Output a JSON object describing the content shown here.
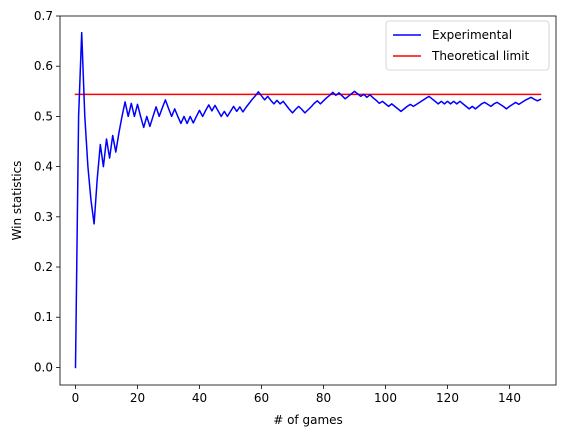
{
  "chart_data": {
    "type": "line",
    "xlabel": "# of games",
    "ylabel": "Win statistics",
    "xlim": [
      -5,
      155
    ],
    "ylim": [
      -0.035,
      0.7
    ],
    "xticks": [
      0,
      20,
      40,
      60,
      80,
      100,
      120,
      140
    ],
    "yticks": [
      0.0,
      0.1,
      0.2,
      0.3,
      0.4,
      0.5,
      0.6,
      0.7
    ],
    "xtick_labels": [
      "0",
      "20",
      "40",
      "60",
      "80",
      "100",
      "120",
      "140"
    ],
    "ytick_labels": [
      "0.0",
      "0.1",
      "0.2",
      "0.3",
      "0.4",
      "0.5",
      "0.6",
      "0.7"
    ],
    "grid": false,
    "legend_position": "top-right",
    "series": [
      {
        "name": "Experimental",
        "color": "#0000ff",
        "x": [
          0,
          1,
          2,
          3,
          4,
          5,
          6,
          7,
          8,
          9,
          10,
          11,
          12,
          13,
          14,
          15,
          16,
          17,
          18,
          19,
          20,
          21,
          22,
          23,
          24,
          25,
          26,
          27,
          28,
          29,
          30,
          31,
          32,
          33,
          34,
          35,
          36,
          37,
          38,
          39,
          40,
          41,
          42,
          43,
          44,
          45,
          46,
          47,
          48,
          49,
          50,
          51,
          52,
          53,
          54,
          55,
          56,
          57,
          58,
          59,
          60,
          61,
          62,
          63,
          64,
          65,
          66,
          67,
          68,
          69,
          70,
          71,
          72,
          73,
          74,
          75,
          76,
          77,
          78,
          79,
          80,
          81,
          82,
          83,
          84,
          85,
          86,
          87,
          88,
          89,
          90,
          91,
          92,
          93,
          94,
          95,
          96,
          97,
          98,
          99,
          100,
          101,
          102,
          103,
          104,
          105,
          106,
          107,
          108,
          109,
          110,
          111,
          112,
          113,
          114,
          115,
          116,
          117,
          118,
          119,
          120,
          121,
          122,
          123,
          124,
          125,
          126,
          127,
          128,
          129,
          130,
          131,
          132,
          133,
          134,
          135,
          136,
          137,
          138,
          139,
          140,
          141,
          142,
          143,
          144,
          145,
          146,
          147,
          148,
          149,
          150
        ],
        "y": [
          0.0,
          0.5,
          0.667,
          0.5,
          0.4,
          0.333,
          0.286,
          0.375,
          0.444,
          0.4,
          0.455,
          0.417,
          0.462,
          0.429,
          0.467,
          0.5,
          0.529,
          0.5,
          0.526,
          0.5,
          0.524,
          0.5,
          0.478,
          0.5,
          0.48,
          0.5,
          0.519,
          0.5,
          0.517,
          0.533,
          0.516,
          0.5,
          0.515,
          0.5,
          0.486,
          0.5,
          0.486,
          0.5,
          0.487,
          0.5,
          0.512,
          0.5,
          0.512,
          0.523,
          0.511,
          0.522,
          0.511,
          0.5,
          0.51,
          0.5,
          0.51,
          0.52,
          0.51,
          0.519,
          0.509,
          0.518,
          0.526,
          0.534,
          0.541,
          0.549,
          0.541,
          0.533,
          0.54,
          0.532,
          0.525,
          0.532,
          0.525,
          0.53,
          0.522,
          0.514,
          0.507,
          0.514,
          0.52,
          0.514,
          0.507,
          0.513,
          0.519,
          0.526,
          0.531,
          0.525,
          0.531,
          0.537,
          0.542,
          0.548,
          0.542,
          0.547,
          0.541,
          0.535,
          0.54,
          0.545,
          0.55,
          0.545,
          0.54,
          0.544,
          0.538,
          0.543,
          0.537,
          0.532,
          0.526,
          0.53,
          0.525,
          0.52,
          0.525,
          0.52,
          0.515,
          0.51,
          0.515,
          0.52,
          0.524,
          0.52,
          0.524,
          0.528,
          0.532,
          0.536,
          0.54,
          0.535,
          0.53,
          0.525,
          0.53,
          0.525,
          0.53,
          0.525,
          0.53,
          0.525,
          0.53,
          0.525,
          0.52,
          0.515,
          0.52,
          0.515,
          0.52,
          0.525,
          0.528,
          0.524,
          0.52,
          0.525,
          0.528,
          0.524,
          0.52,
          0.515,
          0.52,
          0.524,
          0.528,
          0.524,
          0.528,
          0.532,
          0.535,
          0.538,
          0.534,
          0.531,
          0.534
        ]
      },
      {
        "name": "Theoretical limit",
        "color": "#ff0000",
        "x": [
          0,
          150
        ],
        "y": [
          0.544,
          0.544
        ]
      }
    ]
  }
}
